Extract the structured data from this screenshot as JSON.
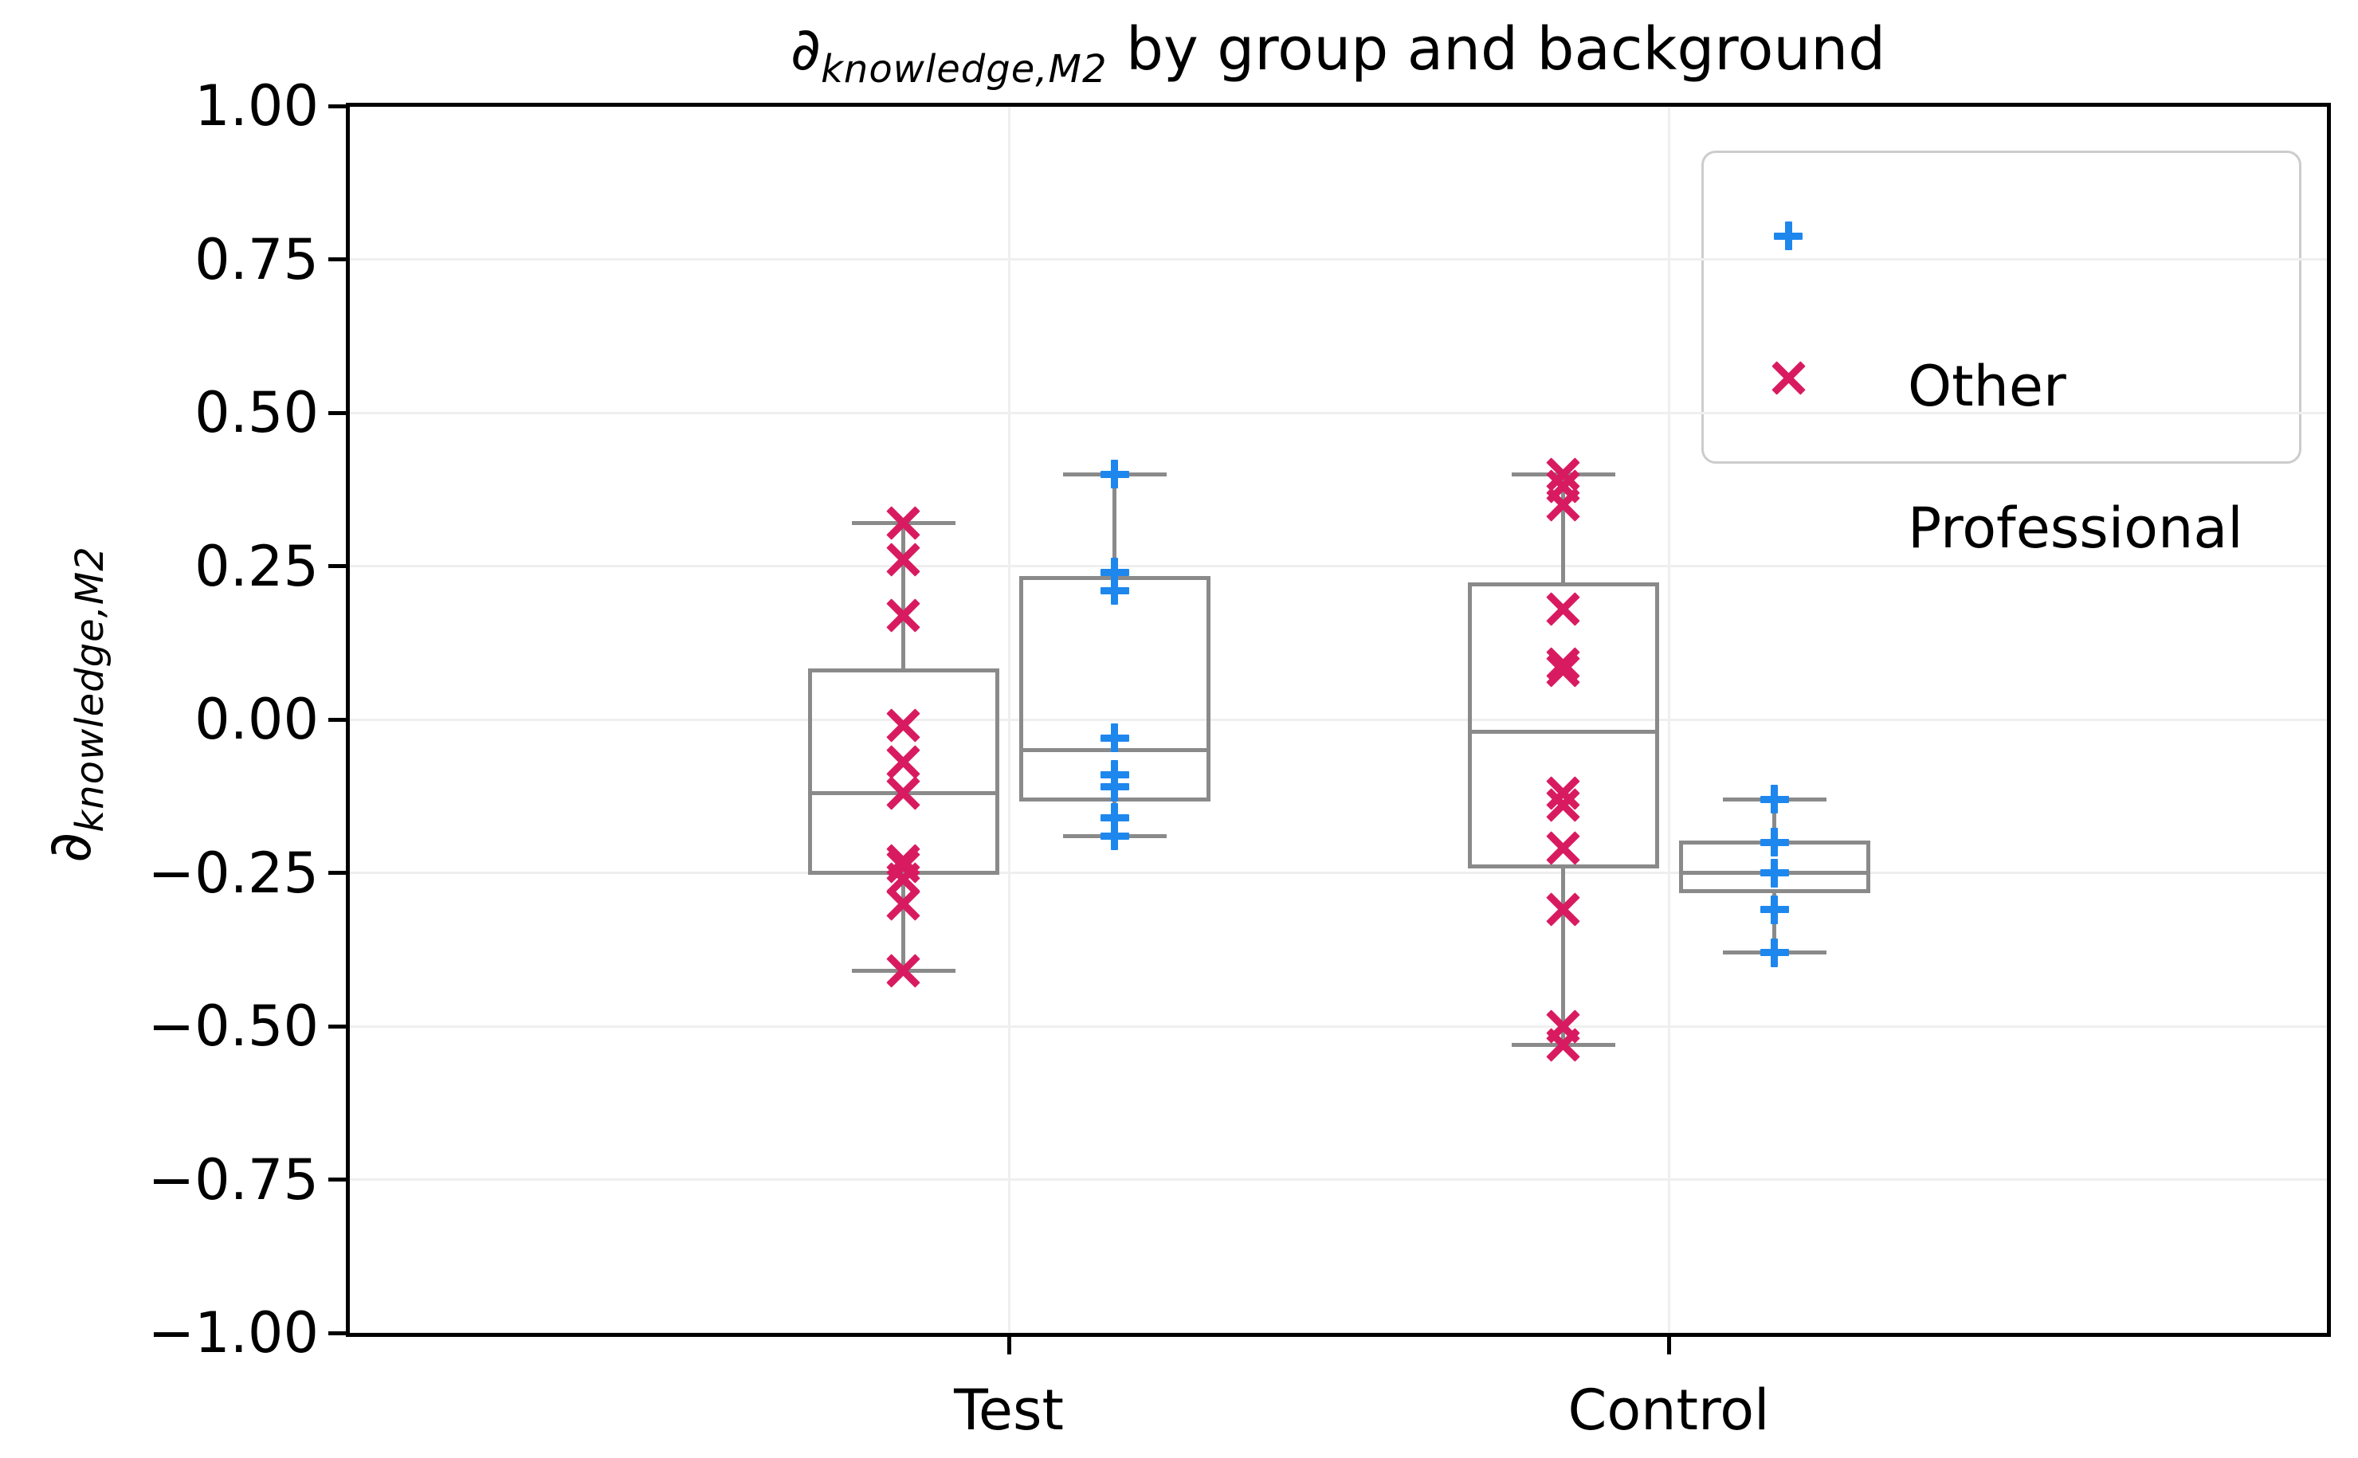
{
  "figure": {
    "title": {
      "symbol": "∂",
      "subscript": "knowledge,M2",
      "rest": " by group and background"
    },
    "ylabel": {
      "symbol": "∂",
      "subscript": "knowledge,M2"
    }
  },
  "chart_data": {
    "type": "box",
    "title": "∂_knowledge,M2 by group and background",
    "ylabel": "∂_knowledge,M2",
    "grid": true,
    "legend_position": "upper right",
    "ylim": [
      -1.0,
      1.0
    ],
    "ytick_values": [
      1.0,
      0.75,
      0.5,
      0.25,
      0.0,
      -0.25,
      -0.5,
      -0.75,
      -1.0
    ],
    "ytick_labels": [
      "1.00",
      "0.75",
      "0.50",
      "0.25",
      "0.00",
      "−0.25",
      "−0.50",
      "−0.75",
      "−1.00"
    ],
    "groups": [
      {
        "label": "Test"
      },
      {
        "label": "Control"
      }
    ],
    "series": [
      {
        "name": "Other",
        "marker": "plus",
        "color": "#1E87EE"
      },
      {
        "name": "Professional",
        "marker": "x",
        "color": "#D81B60"
      }
    ],
    "colors": {
      "box_line": "#8A8A8A",
      "grid": "#EFEFEF",
      "spine": "#000000",
      "background": "#FFFFFF"
    },
    "boxes": [
      {
        "group": "Test",
        "series": "Professional",
        "whisker_low": -0.41,
        "q1": -0.25,
        "median": -0.12,
        "q3": 0.08,
        "whisker_high": 0.32,
        "points": [
          0.32,
          0.26,
          0.17,
          -0.01,
          -0.07,
          -0.12,
          -0.23,
          -0.24,
          -0.26,
          -0.3,
          -0.41
        ]
      },
      {
        "group": "Test",
        "series": "Other",
        "whisker_low": -0.19,
        "q1": -0.13,
        "median": -0.05,
        "q3": 0.23,
        "whisker_high": 0.4,
        "points": [
          0.4,
          0.24,
          0.21,
          -0.03,
          -0.09,
          -0.11,
          -0.16,
          -0.19
        ]
      },
      {
        "group": "Control",
        "series": "Professional",
        "whisker_low": -0.53,
        "q1": -0.24,
        "median": -0.02,
        "q3": 0.22,
        "whisker_high": 0.4,
        "points": [
          0.4,
          0.38,
          0.35,
          0.18,
          0.09,
          0.08,
          -0.12,
          -0.14,
          -0.21,
          -0.31,
          -0.5,
          -0.53
        ]
      },
      {
        "group": "Control",
        "series": "Other",
        "whisker_low": -0.38,
        "q1": -0.28,
        "median": -0.25,
        "q3": -0.2,
        "whisker_high": -0.13,
        "points": [
          -0.13,
          -0.2,
          -0.25,
          -0.31,
          -0.38
        ]
      }
    ]
  }
}
